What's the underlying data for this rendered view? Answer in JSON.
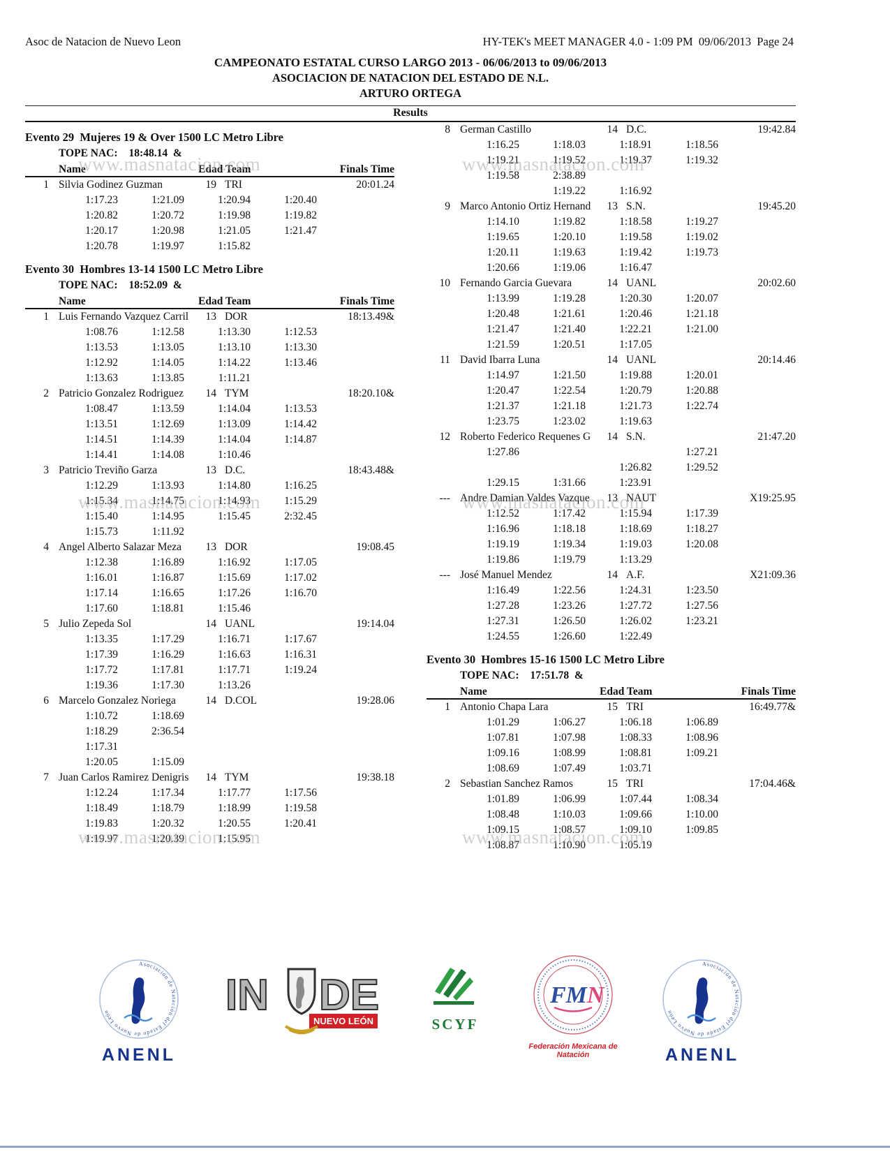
{
  "header": {
    "left": "Asoc de Natacion de Nuevo Leon",
    "right": "HY-TEK's MEET MANAGER 4.0 - 1:09 PM  09/06/2013  Page 24",
    "title": "CAMPEONATO ESTATAL CURSO LARGO 2013 - 06/06/2013 to 09/06/2013",
    "subtitle": "ASOCIACION DE NATACION DEL ESTADO DE N.L.",
    "venue": "ARTURO ORTEGA",
    "results_label": "Results"
  },
  "table_header": {
    "name": "Name",
    "edad_team": "Edad Team",
    "finals": "Finals Time"
  },
  "watermark": {
    "text": "www.masnatacion.com"
  },
  "columns": {
    "left": [
      {
        "type": "event",
        "title": "Evento 29  Mujeres 19 & Over 1500 LC Metro Libre",
        "tope_label": "TOPE NAC:",
        "tope_value": "18:48.14  &",
        "entries": [
          {
            "place": "1",
            "name": "Silvia Godinez Guzman",
            "edad": "19",
            "team": "TRI",
            "finals": "20:01.24",
            "splits": [
              [
                "1:17.23",
                "1:21.09",
                "1:20.94",
                "1:20.40"
              ],
              [
                "1:20.82",
                "1:20.72",
                "1:19.98",
                "1:19.82"
              ],
              [
                "1:20.17",
                "1:20.98",
                "1:21.05",
                "1:21.47"
              ],
              [
                "1:20.78",
                "1:19.97",
                "1:15.82"
              ]
            ]
          }
        ]
      },
      {
        "type": "event",
        "title": "Evento 30  Hombres 13-14 1500 LC Metro Libre",
        "tope_label": "TOPE NAC:",
        "tope_value": "18:52.09  &",
        "entries": [
          {
            "place": "1",
            "name": "Luis Fernando Vazquez Carril",
            "edad": "13",
            "team": "DOR",
            "finals": "18:13.49&",
            "splits": [
              [
                "1:08.76",
                "1:12.58",
                "1:13.30",
                "1:12.53"
              ],
              [
                "1:13.53",
                "1:13.05",
                "1:13.10",
                "1:13.30"
              ],
              [
                "1:12.92",
                "1:14.05",
                "1:14.22",
                "1:13.46"
              ],
              [
                "1:13.63",
                "1:13.85",
                "1:11.21"
              ]
            ]
          },
          {
            "place": "2",
            "name": "Patricio Gonzalez Rodriguez",
            "edad": "14",
            "team": "TYM",
            "finals": "18:20.10&",
            "splits": [
              [
                "1:08.47",
                "1:13.59",
                "1:14.04",
                "1:13.53"
              ],
              [
                "1:13.51",
                "1:12.69",
                "1:13.09",
                "1:14.42"
              ],
              [
                "1:14.51",
                "1:14.39",
                "1:14.04",
                "1:14.87"
              ],
              [
                "1:14.41",
                "1:14.08",
                "1:10.46"
              ]
            ]
          },
          {
            "place": "3",
            "name": "Patricio Treviño Garza",
            "edad": "13",
            "team": "D.C.",
            "finals": "18:43.48&",
            "splits": [
              [
                "1:12.29",
                "1:13.93",
                "1:14.80",
                "1:16.25"
              ],
              [
                "1:15.34",
                "1:14.75",
                "1:14.93",
                "1:15.29"
              ],
              [
                "1:15.40",
                "1:14.95",
                "1:15.45",
                "2:32.45"
              ],
              [
                "1:15.73",
                "1:11.92"
              ]
            ]
          },
          {
            "place": "4",
            "name": "Angel Alberto Salazar Meza",
            "edad": "13",
            "team": "DOR",
            "finals": "19:08.45",
            "splits": [
              [
                "1:12.38",
                "1:16.89",
                "1:16.92",
                "1:17.05"
              ],
              [
                "1:16.01",
                "1:16.87",
                "1:15.69",
                "1:17.02"
              ],
              [
                "1:17.14",
                "1:16.65",
                "1:17.26",
                "1:16.70"
              ],
              [
                "1:17.60",
                "1:18.81",
                "1:15.46"
              ]
            ]
          },
          {
            "place": "5",
            "name": "Julio Zepeda Sol",
            "edad": "14",
            "team": "UANL",
            "finals": "19:14.04",
            "splits": [
              [
                "1:13.35",
                "1:17.29",
                "1:16.71",
                "1:17.67"
              ],
              [
                "1:17.39",
                "1:16.29",
                "1:16.63",
                "1:16.31"
              ],
              [
                "1:17.72",
                "1:17.81",
                "1:17.71",
                "1:19.24"
              ],
              [
                "1:19.36",
                "1:17.30",
                "1:13.26"
              ]
            ]
          },
          {
            "place": "6",
            "name": "Marcelo Gonzalez Noriega",
            "edad": "14",
            "team": "D.COL",
            "finals": "19:28.06",
            "splits": [
              [
                "1:10.72",
                "1:18.69"
              ],
              [
                "1:18.29",
                "2:36.54"
              ],
              [
                "1:17.31"
              ],
              [
                "1:20.05",
                "1:15.09"
              ]
            ]
          },
          {
            "place": "7",
            "name": "Juan Carlos Ramirez Denigris",
            "edad": "14",
            "team": "TYM",
            "finals": "19:38.18",
            "splits": [
              [
                "1:12.24",
                "1:17.34",
                "1:17.77",
                "1:17.56"
              ],
              [
                "1:18.49",
                "1:18.79",
                "1:18.99",
                "1:19.58"
              ],
              [
                "1:19.83",
                "1:20.32",
                "1:20.55",
                "1:20.41"
              ],
              [
                "1:19.97",
                "1:20.39",
                "1:15.95"
              ]
            ]
          }
        ]
      }
    ],
    "right": [
      {
        "type": "continuation",
        "entries": [
          {
            "place": "8",
            "name": "German Castillo",
            "edad": "14",
            "team": "D.C.",
            "finals": "19:42.84",
            "splits": [
              [
                "1:16.25",
                "1:18.03",
                "1:18.91",
                "1:18.56"
              ],
              [
                "1:19.21",
                "1:19.52",
                "1:19.37",
                "1:19.32"
              ],
              [
                "1:19.58",
                "2:38.89"
              ],
              [
                "",
                "1:19.22",
                "1:16.92"
              ]
            ]
          },
          {
            "place": "9",
            "name": "Marco Antonio Ortiz Hernand",
            "edad": "13",
            "team": "S.N.",
            "finals": "19:45.20",
            "splits": [
              [
                "1:14.10",
                "1:19.82",
                "1:18.58",
                "1:19.27"
              ],
              [
                "1:19.65",
                "1:20.10",
                "1:19.58",
                "1:19.02"
              ],
              [
                "1:20.11",
                "1:19.63",
                "1:19.42",
                "1:19.73"
              ],
              [
                "1:20.66",
                "1:19.06",
                "1:16.47"
              ]
            ]
          },
          {
            "place": "10",
            "name": "Fernando Garcia Guevara",
            "edad": "14",
            "team": "UANL",
            "finals": "20:02.60",
            "splits": [
              [
                "1:13.99",
                "1:19.28",
                "1:20.30",
                "1:20.07"
              ],
              [
                "1:20.48",
                "1:21.61",
                "1:20.46",
                "1:21.18"
              ],
              [
                "1:21.47",
                "1:21.40",
                "1:22.21",
                "1:21.00"
              ],
              [
                "1:21.59",
                "1:20.51",
                "1:17.05"
              ]
            ]
          },
          {
            "place": "11",
            "name": "David Ibarra Luna",
            "edad": "14",
            "team": "UANL",
            "finals": "20:14.46",
            "splits": [
              [
                "1:14.97",
                "1:21.50",
                "1:19.88",
                "1:20.01"
              ],
              [
                "1:20.47",
                "1:22.54",
                "1:20.79",
                "1:20.88"
              ],
              [
                "1:21.37",
                "1:21.18",
                "1:21.73",
                "1:22.74"
              ],
              [
                "1:23.75",
                "1:23.02",
                "1:19.63"
              ]
            ]
          },
          {
            "place": "12",
            "name": "Roberto Federico Requenes G",
            "edad": "14",
            "team": "S.N.",
            "finals": "21:47.20",
            "splits": [
              [
                "1:27.86",
                "",
                "",
                "1:27.21"
              ],
              [
                "",
                "",
                "1:26.82",
                "1:29.52"
              ],
              [
                "1:29.15",
                "1:31.66",
                "1:23.91"
              ]
            ]
          },
          {
            "place": "---",
            "name": "Andre Damian Valdes Vazque",
            "edad": "13",
            "team": "NAUT",
            "finals": "X19:25.95",
            "splits": [
              [
                "1:12.52",
                "1:17.42",
                "1:15.94",
                "1:17.39"
              ],
              [
                "1:16.96",
                "1:18.18",
                "1:18.69",
                "1:18.27"
              ],
              [
                "1:19.19",
                "1:19.34",
                "1:19.03",
                "1:20.08"
              ],
              [
                "1:19.86",
                "1:19.79",
                "1:13.29"
              ]
            ]
          },
          {
            "place": "---",
            "name": "José Manuel Mendez",
            "edad": "14",
            "team": "A.F.",
            "finals": "X21:09.36",
            "splits": [
              [
                "1:16.49",
                "1:22.56",
                "1:24.31",
                "1:23.50"
              ],
              [
                "1:27.28",
                "1:23.26",
                "1:27.72",
                "1:27.56"
              ],
              [
                "1:27.31",
                "1:26.50",
                "1:26.02",
                "1:23.21"
              ],
              [
                "1:24.55",
                "1:26.60",
                "1:22.49"
              ]
            ]
          }
        ]
      },
      {
        "type": "event",
        "title": "Evento 30  Hombres 15-16 1500 LC Metro Libre",
        "tope_label": "TOPE NAC:",
        "tope_value": "17:51.78  &",
        "entries": [
          {
            "place": "1",
            "name": "Antonio Chapa Lara",
            "edad": "15",
            "team": "TRI",
            "finals": "16:49.77&",
            "splits": [
              [
                "1:01.29",
                "1:06.27",
                "1:06.18",
                "1:06.89"
              ],
              [
                "1:07.81",
                "1:07.98",
                "1:08.33",
                "1:08.96"
              ],
              [
                "1:09.16",
                "1:08.99",
                "1:08.81",
                "1:09.21"
              ],
              [
                "1:08.69",
                "1:07.49",
                "1:03.71"
              ]
            ]
          },
          {
            "place": "2",
            "name": "Sebastian Sanchez Ramos",
            "edad": "15",
            "team": "TRI",
            "finals": "17:04.46&",
            "splits": [
              [
                "1:01.89",
                "1:06.99",
                "1:07.44",
                "1:08.34"
              ],
              [
                "1:08.48",
                "1:10.03",
                "1:09.66",
                "1:10.00"
              ],
              [
                "1:09.15",
                "1:08.57",
                "1:09.10",
                "1:09.85"
              ],
              [
                "1:08.87",
                "1:10.90",
                "1:05.19"
              ]
            ]
          }
        ]
      }
    ]
  },
  "footer": {
    "anenl_label": "ANENL",
    "anenl_ring_text": "Asociación de Natación del Estado de Nuevo León",
    "inde_in": "IN",
    "inde_de": "DE",
    "inde_sub": "NUEVO LEÓN",
    "scyf_label": "SCYF",
    "fmn_fm": "FM",
    "fmn_n": "N",
    "fmn_caption": "Federación Mexicana de Natación"
  }
}
